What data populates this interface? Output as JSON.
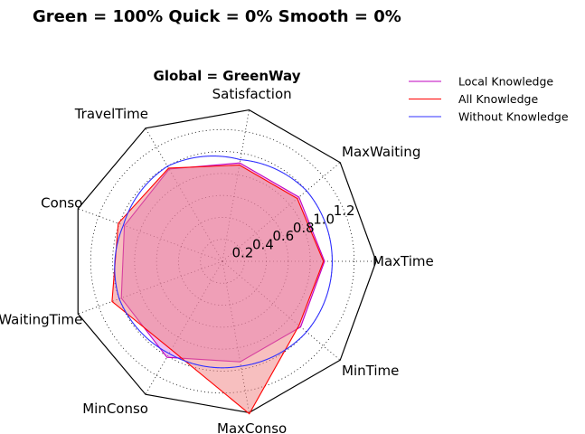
{
  "figure": {
    "suptitle": "Green = 100% Quick = 0% Smooth = 0%"
  },
  "chart_data": {
    "type": "radar",
    "title": "Global = GreenWay",
    "axes": [
      "MaxTime",
      "MaxWaiting",
      "Satisfaction",
      "TravelTime",
      "Conso",
      "WaitingTime",
      "MinConso",
      "MaxConso",
      "MinTime"
    ],
    "radial_ticks": [
      0.2,
      0.4,
      0.6,
      0.8,
      1.0,
      1.2
    ],
    "radial_tick_labels": [
      "0.2",
      "0.4",
      "0.6",
      "0.8",
      "1.0",
      "1.2"
    ],
    "rmax": 1.4,
    "grid": true,
    "legend": "top-right",
    "series": [
      {
        "name": "Local Knowledge",
        "color": "#bf00bf",
        "fill": "#e080e0",
        "values": [
          0.93,
          0.91,
          0.91,
          0.97,
          0.95,
          0.98,
          1.01,
          0.93,
          0.93
        ]
      },
      {
        "name": "All Knowledge",
        "color": "#ff0000",
        "fill": "#f08080",
        "values": [
          0.92,
          0.89,
          0.89,
          0.98,
          1.01,
          1.07,
          0.93,
          1.41,
          0.91
        ]
      },
      {
        "name": "Without Knowledge",
        "color": "#3030ff",
        "fill": "none",
        "values": [
          1.0,
          1.0,
          0.94,
          1.0,
          0.96,
          1.0,
          0.97,
          0.97,
          1.0
        ]
      }
    ]
  }
}
